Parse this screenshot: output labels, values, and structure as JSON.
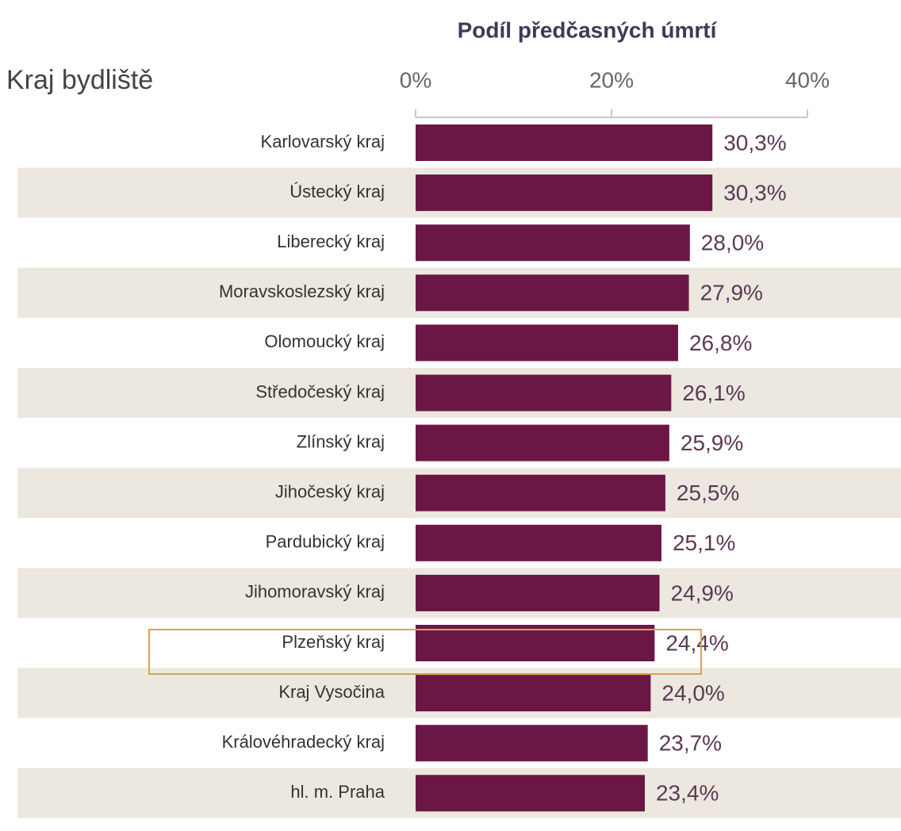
{
  "chart_data": {
    "type": "barh",
    "title": "Podíl předčasných úmrtí",
    "y_axis_label": "Kraj bydliště",
    "categories": [
      "Karlovarský kraj",
      "Ústecký kraj",
      "Liberecký kraj",
      "Moravskoslezský kraj",
      "Olomoucký kraj",
      "Středočeský kraj",
      "Zlínský kraj",
      "Jihočeský kraj",
      "Pardubický kraj",
      "Jihomoravský kraj",
      "Plzeňský kraj",
      "Kraj Vysočina",
      "Královéhradecký kraj",
      "hl. m. Praha"
    ],
    "values": [
      30.3,
      30.3,
      28.0,
      27.9,
      26.8,
      26.1,
      25.9,
      25.5,
      25.1,
      24.9,
      24.4,
      24.0,
      23.7,
      23.4
    ],
    "value_labels": [
      "30,3%",
      "30,3%",
      "28,0%",
      "27,9%",
      "26,8%",
      "26,1%",
      "25,9%",
      "25,5%",
      "25,1%",
      "24,9%",
      "24,4%",
      "24,0%",
      "23,7%",
      "23,4%"
    ],
    "color": "#6b1746",
    "xlim": [
      0,
      40
    ],
    "xticks": [
      {
        "value": 0,
        "label": "0%"
      },
      {
        "value": 20,
        "label": "20%"
      },
      {
        "value": 40,
        "label": "40%"
      }
    ]
  }
}
